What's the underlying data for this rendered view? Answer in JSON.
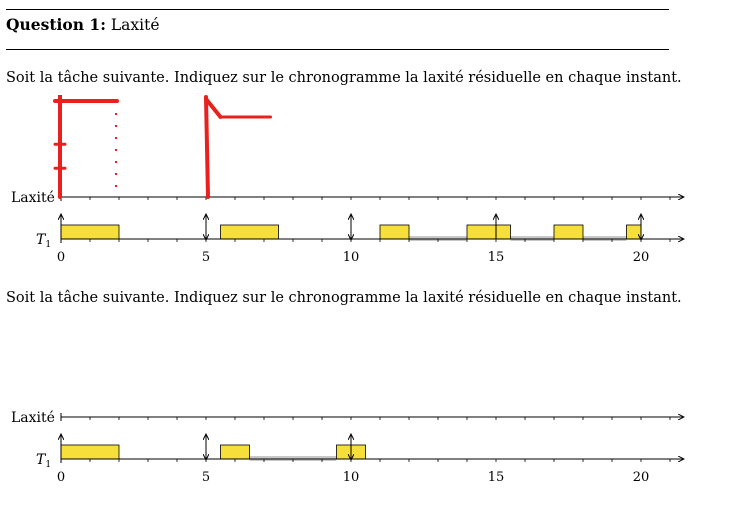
{
  "question": {
    "label": "Question 1:",
    "title": "Laxité"
  },
  "instruction1": "Soit la tâche suivante. Indiquez sur le chronogramme la laxité résiduelle en chaque instant.",
  "instruction2": "Soit la tâche suivante. Indiquez sur le chronogramme la laxité résiduelle en chaque instant.",
  "chart_data": [
    {
      "type": "timeline",
      "row_labels": [
        "Laxité",
        "T1"
      ],
      "x_ticks": [
        0,
        5,
        10,
        15,
        20
      ],
      "x_range": [
        0,
        21
      ],
      "task_T1": {
        "execution": [
          [
            0,
            2
          ],
          [
            5.5,
            7.5
          ],
          [
            11,
            12
          ],
          [
            14,
            15.5
          ],
          [
            17,
            18
          ],
          [
            19.5,
            20
          ]
        ],
        "waiting": [
          [
            12,
            14
          ],
          [
            15.5,
            17
          ],
          [
            18,
            19.5
          ]
        ],
        "arrivals": [
          0,
          5,
          10,
          15,
          20
        ],
        "deadlines": [
          5,
          10,
          20
        ]
      },
      "handwritten_laxity": [
        [
          0,
          3
        ],
        [
          2,
          3
        ],
        [
          5,
          3
        ],
        [
          5.5,
          2.5
        ],
        [
          7.5,
          2.5
        ]
      ],
      "colors": {
        "execution": "#f6de3b",
        "waiting": "#c8c8c8",
        "ink": "#e8201e"
      }
    },
    {
      "type": "timeline",
      "row_labels": [
        "Laxité",
        "T1"
      ],
      "x_ticks": [
        0,
        5,
        10,
        15,
        20
      ],
      "x_range": [
        0,
        21
      ],
      "task_T1": {
        "execution": [
          [
            0,
            2
          ],
          [
            5.5,
            6.5
          ],
          [
            9.5,
            10.5
          ]
        ],
        "waiting": [
          [
            6.5,
            9.5
          ]
        ],
        "arrivals": [
          0,
          5,
          10
        ],
        "deadlines": [
          5,
          10
        ]
      },
      "colors": {
        "execution": "#f6de3b",
        "waiting": "#c8c8c8"
      }
    }
  ]
}
